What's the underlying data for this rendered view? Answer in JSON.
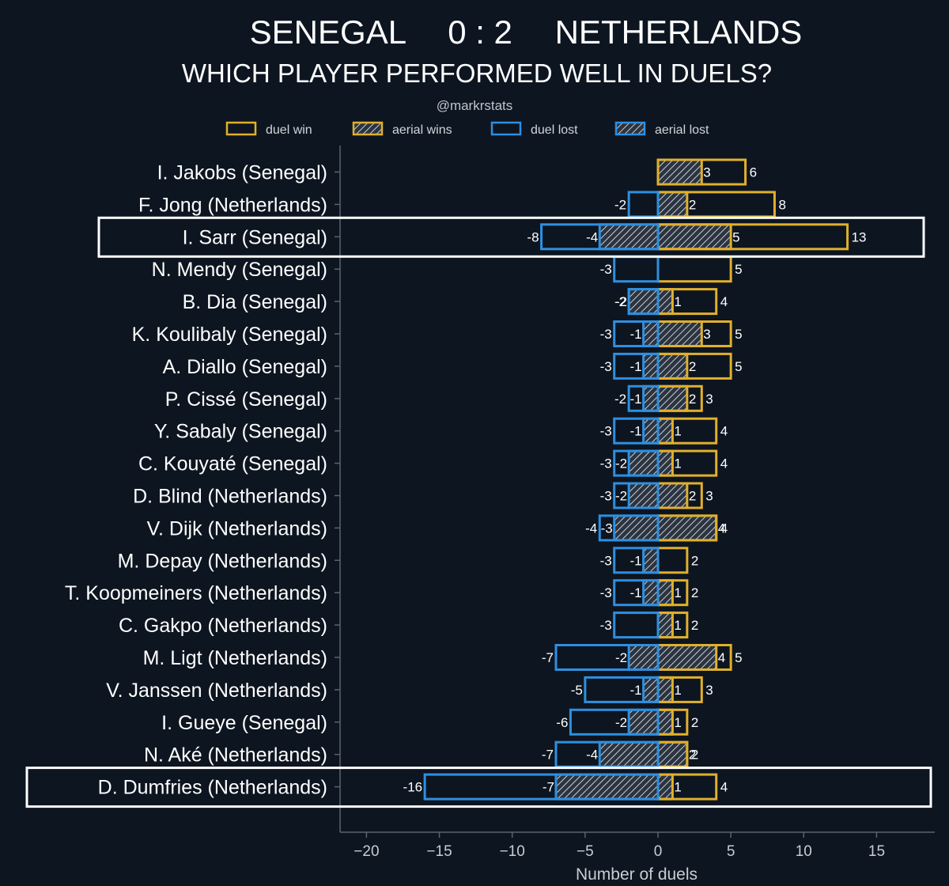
{
  "chart_data": {
    "type": "bar",
    "orientation": "horizontal-diverging",
    "title": "SENEGAL    0 : 2    NETHERLANDS",
    "title_parts": {
      "team_left": "SENEGAL",
      "score": "0 : 2",
      "team_right": "NETHERLANDS"
    },
    "subtitle": "WHICH PLAYER PERFORMED WELL IN DUELS?",
    "credit": "@markrstats",
    "xlabel": "Number of duels",
    "xlim": [
      -21,
      19
    ],
    "xticks": [
      -20,
      -15,
      -10,
      -5,
      0,
      5,
      10,
      15
    ],
    "xtick_labels": [
      "−20",
      "−15",
      "−10",
      "−5",
      "0",
      "5",
      "10",
      "15"
    ],
    "legend": [
      {
        "key": "duel_win",
        "label": "duel win",
        "color": "#e0b02c",
        "hatched": false
      },
      {
        "key": "aerial_wins",
        "label": "aerial wins",
        "color": "#e0b02c",
        "hatched": true
      },
      {
        "key": "duel_lost",
        "label": "duel lost",
        "color": "#2e8fe0",
        "hatched": false
      },
      {
        "key": "aerial_lost",
        "label": "aerial lost",
        "color": "#2e8fe0",
        "hatched": true
      }
    ],
    "colors": {
      "win": "#e0b02c",
      "lost": "#2e8fe0",
      "hatch": "#2b3440",
      "highlight": "#ffffff"
    },
    "categories": [
      "I. Jakobs (Senegal)",
      "F. Jong (Netherlands)",
      "I. Sarr (Senegal)",
      "N. Mendy (Senegal)",
      "B. Dia (Senegal)",
      "K. Koulibaly (Senegal)",
      "A. Diallo (Senegal)",
      "P. Cissé (Senegal)",
      "Y. Sabaly (Senegal)",
      "C. Kouyaté (Senegal)",
      "D. Blind (Netherlands)",
      "V. Dijk (Netherlands)",
      "M. Depay (Netherlands)",
      "T. Koopmeiners (Netherlands)",
      "C. Gakpo (Netherlands)",
      "M. Ligt (Netherlands)",
      "V. Janssen (Netherlands)",
      "I. Gueye (Senegal)",
      "N. Aké (Netherlands)",
      "D. Dumfries (Netherlands)"
    ],
    "series": [
      {
        "name": "duel win",
        "values": [
          6,
          8,
          13,
          5,
          4,
          5,
          5,
          3,
          4,
          4,
          3,
          4,
          2,
          2,
          2,
          5,
          3,
          2,
          2,
          4
        ]
      },
      {
        "name": "aerial wins",
        "values": [
          3,
          2,
          5,
          0,
          1,
          3,
          2,
          2,
          1,
          1,
          2,
          4,
          0,
          1,
          1,
          4,
          1,
          1,
          2,
          1
        ]
      },
      {
        "name": "duel lost",
        "values": [
          0,
          -2,
          -8,
          -3,
          -2,
          -3,
          -3,
          -2,
          -3,
          -3,
          -3,
          -4,
          -3,
          -3,
          -3,
          -7,
          -5,
          -6,
          -7,
          -16
        ]
      },
      {
        "name": "aerial lost",
        "values": [
          0,
          0,
          -4,
          0,
          -2,
          -1,
          -1,
          -1,
          -1,
          -2,
          -2,
          -3,
          -1,
          -1,
          0,
          -2,
          -1,
          -2,
          -4,
          -7
        ]
      }
    ],
    "highlighted": [
      "I. Sarr (Senegal)",
      "D. Dumfries (Netherlands)"
    ]
  }
}
